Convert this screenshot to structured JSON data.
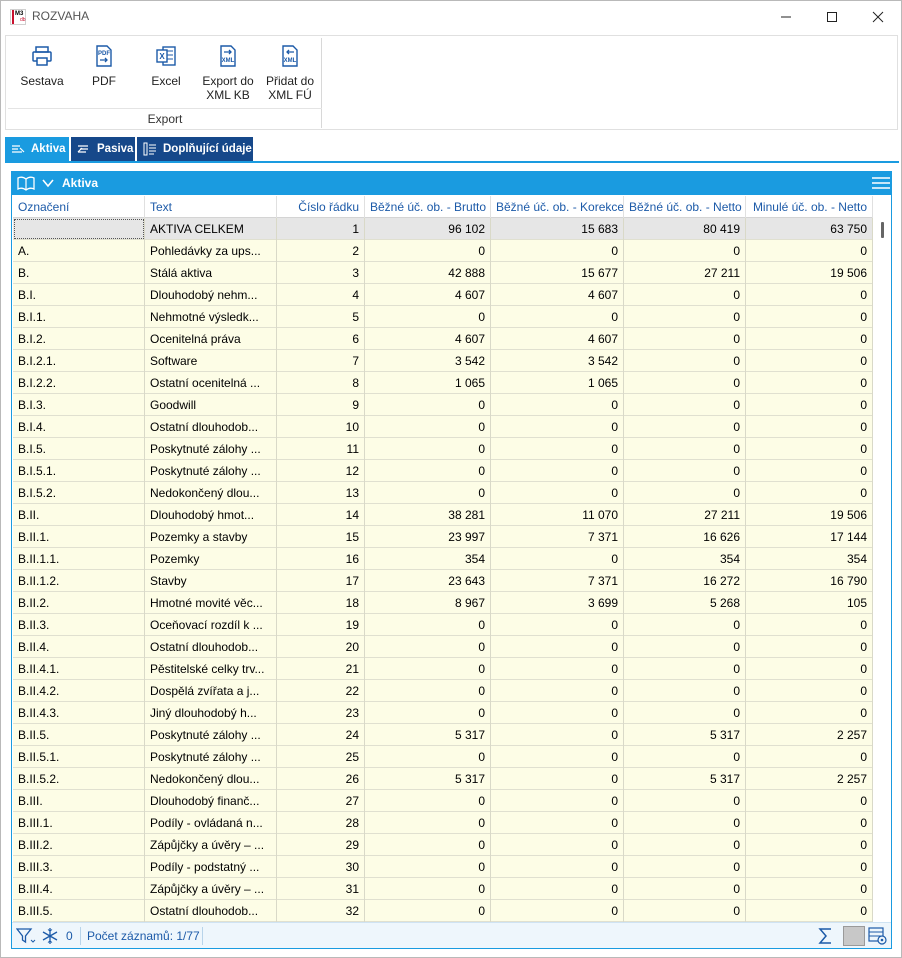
{
  "window": {
    "title": "ROZVAHA",
    "app_icon_text": "M3",
    "app_icon_sub": "db"
  },
  "ribbon": {
    "buttons": [
      {
        "label": "Sestava",
        "icon": "printer-icon"
      },
      {
        "label": "PDF",
        "icon": "pdf-export-icon",
        "icon_text": "PDF"
      },
      {
        "label": "Excel",
        "icon": "excel-icon",
        "icon_text": "X"
      },
      {
        "label": "Export do XML KB",
        "line1": "Export do",
        "line2": "XML KB",
        "icon": "xml-export-icon",
        "icon_text": "XML"
      },
      {
        "label": "Přidat do XML FÚ",
        "line1": "Přidat do",
        "line2": "XML FÚ",
        "icon": "xml-add-icon",
        "icon_text": "XML"
      }
    ],
    "group_label": "Export"
  },
  "tabs": [
    {
      "label": "Aktiva",
      "active": true
    },
    {
      "label": "Pasiva",
      "active": false
    },
    {
      "label": "Doplňující údaje",
      "active": false
    }
  ],
  "panel": {
    "title": "Aktiva"
  },
  "table": {
    "columns": [
      "Označení",
      "Text",
      "Číslo řádku",
      "Běžné úč. ob. - Brutto",
      "Běžné úč. ob. - Korekce",
      "Běžné úč. ob. - Netto",
      "Minulé úč. ob. - Netto"
    ],
    "rows": [
      [
        "",
        "AKTIVA CELKEM",
        "1",
        "96 102",
        "15 683",
        "80 419",
        "63 750"
      ],
      [
        "A.",
        "Pohledávky za ups...",
        "2",
        "0",
        "0",
        "0",
        "0"
      ],
      [
        "B.",
        "Stálá aktiva",
        "3",
        "42 888",
        "15 677",
        "27 211",
        "19 506"
      ],
      [
        "B.I.",
        "Dlouhodobý nehm...",
        "4",
        "4 607",
        "4 607",
        "0",
        "0"
      ],
      [
        "B.I.1.",
        "Nehmotné výsledk...",
        "5",
        "0",
        "0",
        "0",
        "0"
      ],
      [
        "B.I.2.",
        "Ocenitelná práva",
        "6",
        "4 607",
        "4 607",
        "0",
        "0"
      ],
      [
        "B.I.2.1.",
        "Software",
        "7",
        "3 542",
        "3 542",
        "0",
        "0"
      ],
      [
        "B.I.2.2.",
        "Ostatní ocenitelná ...",
        "8",
        "1 065",
        "1 065",
        "0",
        "0"
      ],
      [
        "B.I.3.",
        "Goodwill",
        "9",
        "0",
        "0",
        "0",
        "0"
      ],
      [
        "B.I.4.",
        "Ostatní dlouhodob...",
        "10",
        "0",
        "0",
        "0",
        "0"
      ],
      [
        "B.I.5.",
        "Poskytnuté zálohy ...",
        "11",
        "0",
        "0",
        "0",
        "0"
      ],
      [
        "B.I.5.1.",
        "Poskytnuté zálohy ...",
        "12",
        "0",
        "0",
        "0",
        "0"
      ],
      [
        "B.I.5.2.",
        "Nedokončený dlou...",
        "13",
        "0",
        "0",
        "0",
        "0"
      ],
      [
        "B.II.",
        "Dlouhodobý hmot...",
        "14",
        "38 281",
        "11 070",
        "27 211",
        "19 506"
      ],
      [
        "B.II.1.",
        "Pozemky a stavby",
        "15",
        "23 997",
        "7 371",
        "16 626",
        "17 144"
      ],
      [
        "B.II.1.1.",
        "Pozemky",
        "16",
        "354",
        "0",
        "354",
        "354"
      ],
      [
        "B.II.1.2.",
        "Stavby",
        "17",
        "23 643",
        "7 371",
        "16 272",
        "16 790"
      ],
      [
        "B.II.2.",
        "Hmotné movité věc...",
        "18",
        "8 967",
        "3 699",
        "5 268",
        "105"
      ],
      [
        "B.II.3.",
        "Oceňovací rozdíl k ...",
        "19",
        "0",
        "0",
        "0",
        "0"
      ],
      [
        "B.II.4.",
        "Ostatní dlouhodob...",
        "20",
        "0",
        "0",
        "0",
        "0"
      ],
      [
        "B.II.4.1.",
        "Pěstitelské celky trv...",
        "21",
        "0",
        "0",
        "0",
        "0"
      ],
      [
        "B.II.4.2.",
        "Dospělá zvířata a j...",
        "22",
        "0",
        "0",
        "0",
        "0"
      ],
      [
        "B.II.4.3.",
        "Jiný dlouhodobý h...",
        "23",
        "0",
        "0",
        "0",
        "0"
      ],
      [
        "B.II.5.",
        "Poskytnuté zálohy ...",
        "24",
        "5 317",
        "0",
        "5 317",
        "2 257"
      ],
      [
        "B.II.5.1.",
        "Poskytnuté zálohy ...",
        "25",
        "0",
        "0",
        "0",
        "0"
      ],
      [
        "B.II.5.2.",
        "Nedokončený dlou...",
        "26",
        "5 317",
        "0",
        "5 317",
        "2 257"
      ],
      [
        "B.III.",
        "Dlouhodobý finanč...",
        "27",
        "0",
        "0",
        "0",
        "0"
      ],
      [
        "B.III.1.",
        "Podíly - ovládaná n...",
        "28",
        "0",
        "0",
        "0",
        "0"
      ],
      [
        "B.III.2.",
        "Zápůjčky a úvěry – ...",
        "29",
        "0",
        "0",
        "0",
        "0"
      ],
      [
        "B.III.3.",
        "Podíly - podstatný ...",
        "30",
        "0",
        "0",
        "0",
        "0"
      ],
      [
        "B.III.4.",
        "Zápůjčky a úvěry – ...",
        "31",
        "0",
        "0",
        "0",
        "0"
      ],
      [
        "B.III.5.",
        "Ostatní dlouhodob...",
        "32",
        "0",
        "0",
        "0",
        "0"
      ]
    ]
  },
  "status": {
    "filter_count": "0",
    "records": "Počet záznamů: 1/77"
  },
  "colors": {
    "accent": "#1a9be0",
    "tab_inactive": "#16488a",
    "row_bg": "#fdfde6",
    "header_text": "#1c5aa8"
  }
}
